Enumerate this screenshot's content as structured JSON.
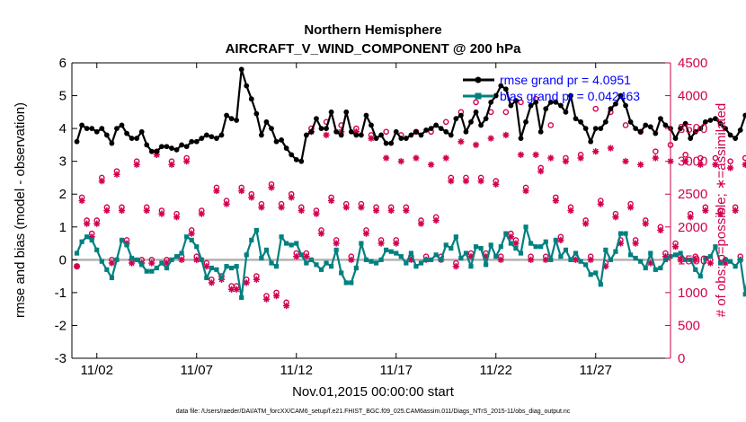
{
  "chart_data": {
    "type": "line",
    "title": "Northern Hemisphere",
    "subtitle": "AIRCRAFT_V_WIND_COMPONENT @ 200 hPa",
    "xlabel": "Nov.01,2015 00:00:00 start",
    "ylabel_left": "rmse and bias (model - observation)",
    "ylabel_right": "# of obs: o=possible; ∗=assimilated",
    "ylim_left": [
      -3,
      6
    ],
    "ylim_right": [
      0,
      4500
    ],
    "xlim": [
      0.75,
      30.75
    ],
    "y_ticks_left": [
      "-3",
      "-2",
      "-1",
      "0",
      "1",
      "2",
      "3",
      "4",
      "5",
      "6"
    ],
    "y_ticks_right": [
      "0",
      "500",
      "1000",
      "1500",
      "2000",
      "2500",
      "3000",
      "3500",
      "4000",
      "4500"
    ],
    "x_ticks": [
      {
        "label": "11/02",
        "value": 2
      },
      {
        "label": "11/07",
        "value": 7
      },
      {
        "label": "11/12",
        "value": 12
      },
      {
        "label": "11/17",
        "value": 17
      },
      {
        "label": "11/22",
        "value": 22
      },
      {
        "label": "11/27",
        "value": 27
      }
    ],
    "colors": {
      "rmse": "#000000",
      "bias": "#008080",
      "obs": "#d3004f",
      "zero_line": "#b3b3b3",
      "legend_text": "#0000ff"
    },
    "series": [
      {
        "name": "rmse",
        "legend": "rmse grand pr = 4.0951",
        "values": [
          3.6,
          4.1,
          4.0,
          4.0,
          3.9,
          4.0,
          3.8,
          3.55,
          4.0,
          4.1,
          3.85,
          3.7,
          3.7,
          3.9,
          3.5,
          3.3,
          3.3,
          3.45,
          3.45,
          3.4,
          3.35,
          3.5,
          3.45,
          3.6,
          3.6,
          3.7,
          3.8,
          3.75,
          3.7,
          3.8,
          4.4,
          4.3,
          4.25,
          5.8,
          5.3,
          4.9,
          4.45,
          3.8,
          4.2,
          4.0,
          3.6,
          3.65,
          3.4,
          3.2,
          3.05,
          3.0,
          3.8,
          3.9,
          4.3,
          4.0,
          4.0,
          4.5,
          3.9,
          3.8,
          4.5,
          3.9,
          3.8,
          3.8,
          4.4,
          4.1,
          3.7,
          3.8,
          3.55,
          3.55,
          3.9,
          3.7,
          3.7,
          3.8,
          3.9,
          3.8,
          3.95,
          4.0,
          4.1,
          4.0,
          3.9,
          3.8,
          4.3,
          4.4,
          3.9,
          4.2,
          4.5,
          4.1,
          4.3,
          4.8,
          5.0,
          5.3,
          5.2,
          4.7,
          4.85,
          3.7,
          4.2,
          4.7,
          4.8,
          3.9,
          4.6,
          4.8,
          4.8,
          4.7,
          4.5,
          5.0,
          4.3,
          4.2,
          4.0,
          3.6,
          4.0,
          4.0,
          4.2,
          4.6,
          4.75,
          5.0,
          4.7,
          4.2,
          4.0,
          3.9,
          4.1,
          4.05,
          3.85,
          4.3,
          4.1,
          4.0,
          3.7,
          4.0,
          4.15,
          3.7,
          3.9,
          4.0,
          4.2,
          4.25,
          4.3,
          4.15,
          4.0,
          3.8,
          3.7,
          3.95,
          4.4,
          4.3,
          4.25,
          3.7
        ],
        "marker": "dot"
      },
      {
        "name": "bias",
        "legend": "bias grand pr = 0.042463",
        "values": [
          0.2,
          0.55,
          0.7,
          0.6,
          0.3,
          -0.05,
          -0.3,
          -0.55,
          0.0,
          0.6,
          0.45,
          0.05,
          0.0,
          -0.15,
          -0.35,
          -0.35,
          -0.25,
          -0.1,
          -0.25,
          0.0,
          0.1,
          0.2,
          0.7,
          0.6,
          0.4,
          0.0,
          -0.55,
          -0.25,
          -0.3,
          -0.55,
          -0.2,
          -0.25,
          -0.2,
          -1.15,
          0.15,
          0.6,
          0.9,
          0.05,
          0.3,
          -0.1,
          -0.2,
          0.7,
          0.5,
          0.45,
          0.5,
          0.15,
          -0.1,
          0.0,
          -0.15,
          -0.3,
          -0.1,
          -0.2,
          0.3,
          -0.4,
          -0.7,
          -0.7,
          -0.25,
          0.5,
          0.0,
          -0.05,
          -0.1,
          0.0,
          0.3,
          0.25,
          0.2,
          0.1,
          -0.1,
          0.2,
          -0.2,
          -0.1,
          0.0,
          0.0,
          0.15,
          0.0,
          0.45,
          0.35,
          0.7,
          0.05,
          0.2,
          -0.2,
          0.4,
          0.35,
          -0.15,
          0.45,
          0.1,
          0.4,
          0.8,
          0.5,
          0.35,
          0.2,
          1.0,
          0.5,
          0.4,
          0.4,
          0.55,
          0.0,
          0.6,
          0.1,
          0.3,
          0.0,
          0.2,
          -0.05,
          -0.15,
          -0.45,
          -0.4,
          -0.75,
          0.3,
          0.0,
          0.25,
          0.8,
          0.8,
          0.15,
          0.05,
          -0.05,
          -0.25,
          0.2,
          -0.3,
          -0.25,
          0.0,
          0.1,
          0.15,
          0.2,
          0.0,
          0.0,
          -0.3,
          -0.5,
          0.05,
          0.1,
          0.4,
          -0.1,
          0.0,
          -0.05,
          -0.2,
          0.0,
          -1.05,
          0.05,
          0.3,
          -0.35
        ],
        "marker": "square"
      },
      {
        "name": "obs_possible",
        "marker": "circle",
        "values": [
          1400,
          2450,
          2100,
          1900,
          2100,
          2750,
          2300,
          1500,
          2850,
          2300,
          1800,
          1500,
          3000,
          1500,
          2300,
          1500,
          3150,
          2250,
          1500,
          3000,
          2200,
          1550,
          3050,
          1950,
          1550,
          2250,
          1450,
          1200,
          2600,
          1250,
          2400,
          1100,
          1100,
          2600,
          1200,
          2500,
          1250,
          2350,
          950,
          2650,
          1000,
          2350,
          850,
          2500,
          1600,
          2300,
          1600,
          3500,
          2250,
          1950,
          3600,
          2450,
          1800,
          3550,
          2350,
          1550,
          3500,
          2350,
          1950,
          3400,
          2300,
          1800,
          3450,
          2300,
          1800,
          3400,
          2300,
          1550,
          3450,
          2100,
          1550,
          3450,
          2150,
          1550,
          3600,
          2750,
          1450,
          3750,
          2750,
          1600,
          3900,
          2750,
          1600,
          3750,
          2700,
          1550,
          3750,
          1900,
          1800,
          3900,
          2600,
          1550,
          3950,
          2900,
          1550,
          3550,
          2450,
          1850,
          3050,
          2300,
          1550,
          3100,
          2100,
          1550,
          3800,
          2400,
          1450,
          3750,
          2200,
          1800,
          3550,
          2350,
          1800,
          3450,
          2100,
          1500,
          3150,
          2000,
          1600,
          3250,
          1750,
          1550,
          3100,
          2200,
          1550,
          3050,
          2300,
          1500,
          3050,
          2250,
          1500,
          3000,
          2300,
          1550,
          3050,
          1550
        ]
      },
      {
        "name": "obs_assimilated",
        "marker": "asterisk",
        "values": [
          1400,
          2400,
          2050,
          1850,
          2050,
          2700,
          2250,
          1450,
          2800,
          2250,
          1750,
          1450,
          2950,
          1450,
          2250,
          1450,
          3100,
          2200,
          1450,
          2950,
          2150,
          1500,
          3000,
          1900,
          1500,
          2200,
          1400,
          1150,
          2550,
          1200,
          2350,
          1050,
          1050,
          2550,
          1150,
          2450,
          1200,
          2300,
          900,
          2600,
          950,
          2300,
          800,
          2450,
          1550,
          2250,
          1550,
          3450,
          2200,
          1900,
          3400,
          2400,
          1750,
          3450,
          2300,
          1500,
          3450,
          2300,
          1900,
          3350,
          2250,
          1750,
          3050,
          2250,
          1750,
          3000,
          2250,
          1500,
          3050,
          2050,
          1500,
          2950,
          2100,
          1500,
          3050,
          2700,
          1400,
          3300,
          2700,
          1550,
          3250,
          2700,
          1550,
          3350,
          2650,
          1500,
          3400,
          1850,
          1750,
          3100,
          2550,
          1500,
          3100,
          2850,
          1500,
          3050,
          2400,
          1800,
          3000,
          2250,
          1500,
          3050,
          2050,
          1500,
          3150,
          2350,
          1400,
          3200,
          2150,
          1750,
          3000,
          2300,
          1750,
          2950,
          2050,
          1450,
          3050,
          1950,
          1550,
          3000,
          1700,
          1500,
          3000,
          2150,
          1500,
          2950,
          2250,
          1450,
          2950,
          2200,
          1450,
          2900,
          2250,
          1500,
          2950,
          1500
        ]
      }
    ]
  },
  "footer": "data file: /Users/raeder/DAI/ATM_forcXX/CAM6_setup/f.e21.FHIST_BGC.f09_025.CAM6assim.011/Diags_NTrS_2015-11/obs_diag_output.nc"
}
